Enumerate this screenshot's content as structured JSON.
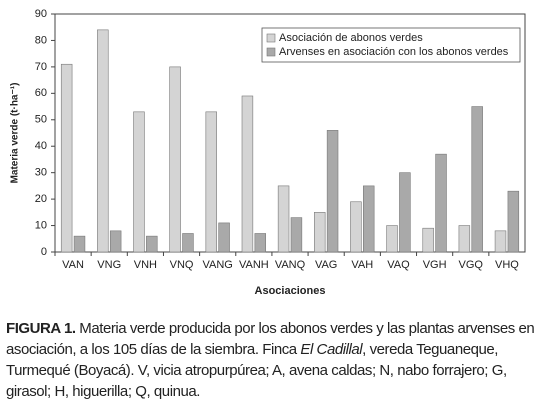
{
  "chart_data": {
    "type": "bar",
    "categories": [
      "VAN",
      "VNG",
      "VNH",
      "VNQ",
      "VANG",
      "VANH",
      "VANQ",
      "VAG",
      "VAH",
      "VAQ",
      "VGH",
      "VGQ",
      "VHQ"
    ],
    "series": [
      {
        "name": "Asociación de abonos verdes",
        "color": "#d4d4d4",
        "values": [
          71,
          84,
          53,
          70,
          53,
          59,
          25,
          15,
          19,
          10,
          9,
          10,
          8
        ]
      },
      {
        "name": "Arvenses en asociación con los abonos verdes",
        "color": "#a9a9a9",
        "values": [
          6,
          8,
          6,
          7,
          11,
          7,
          13,
          46,
          25,
          30,
          37,
          55,
          23
        ]
      }
    ],
    "xlabel": "Asociaciones",
    "ylabel": "Materia verde (t·ha⁻¹)",
    "ylim": [
      0,
      90
    ],
    "yticks": [
      0,
      10,
      20,
      30,
      40,
      50,
      60,
      70,
      80,
      90
    ],
    "grid": false,
    "legend": "upper right"
  },
  "caption": {
    "label": "FIGURA 1.",
    "text_before": " Materia verde producida por los abonos verdes y las plantas arvenses en asociación, a los 105 días de la siembra. Finca ",
    "italic": "El Cadillal",
    "text_after": ", vereda Teguaneque, Turmequé (Boyacá). V, vicia atropurpúrea; A, avena caldas; N, nabo forrajero; G, girasol; H, higuerilla; Q, quinua."
  }
}
